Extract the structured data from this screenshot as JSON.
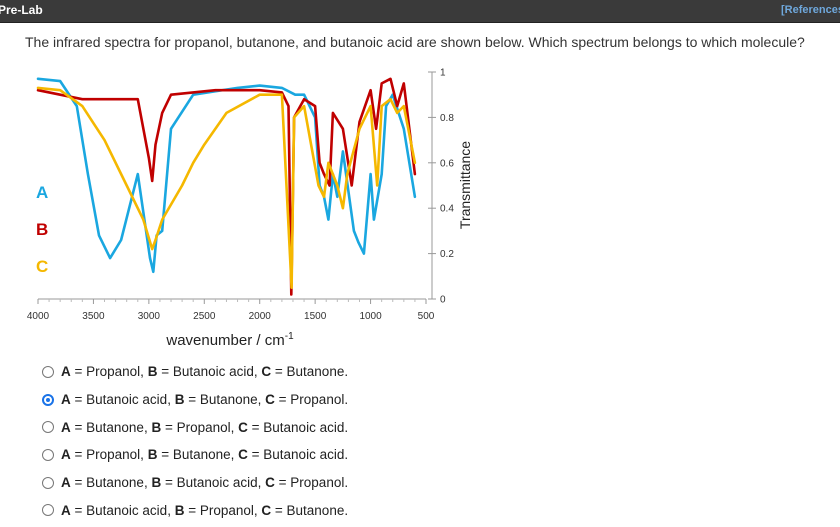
{
  "header": {
    "title": "Pre-Lab",
    "references_link": "[References"
  },
  "question": "The infrared spectra for propanol, butanone, and butanoic acid are shown below. Which spectrum belongs to which molecule?",
  "chart_data": {
    "type": "line",
    "xlabel": "wavenumber / cm",
    "xlabel_superscript": "-1",
    "ylabel": "Transmittance",
    "x_reversed": true,
    "xlim": [
      4000,
      500
    ],
    "ylim": [
      0,
      1
    ],
    "x_ticks": [
      "4000",
      "3500",
      "3000",
      "2500",
      "2000",
      "1500",
      "1000",
      "500"
    ],
    "y_ticks": [
      "0",
      "0.2",
      "0.4",
      "0.6",
      "0.8",
      "1"
    ],
    "grid": false,
    "labels": [
      {
        "text": "A",
        "color": "#1aa7e0"
      },
      {
        "text": "B",
        "color": "#c00000"
      },
      {
        "text": "C",
        "color": "#f5b800"
      }
    ],
    "series": [
      {
        "name": "A",
        "color": "#1aa7e0",
        "points": [
          [
            4000,
            0.97
          ],
          [
            3800,
            0.96
          ],
          [
            3650,
            0.85
          ],
          [
            3550,
            0.55
          ],
          [
            3450,
            0.28
          ],
          [
            3350,
            0.18
          ],
          [
            3250,
            0.26
          ],
          [
            3100,
            0.55
          ],
          [
            2990,
            0.18
          ],
          [
            2960,
            0.12
          ],
          [
            2930,
            0.28
          ],
          [
            2880,
            0.3
          ],
          [
            2800,
            0.75
          ],
          [
            2600,
            0.9
          ],
          [
            2200,
            0.93
          ],
          [
            2000,
            0.94
          ],
          [
            1800,
            0.93
          ],
          [
            1680,
            0.9
          ],
          [
            1600,
            0.9
          ],
          [
            1500,
            0.8
          ],
          [
            1460,
            0.5
          ],
          [
            1420,
            0.45
          ],
          [
            1380,
            0.35
          ],
          [
            1340,
            0.55
          ],
          [
            1300,
            0.45
          ],
          [
            1250,
            0.65
          ],
          [
            1150,
            0.3
          ],
          [
            1110,
            0.25
          ],
          [
            1060,
            0.2
          ],
          [
            1000,
            0.55
          ],
          [
            970,
            0.35
          ],
          [
            900,
            0.55
          ],
          [
            860,
            0.85
          ],
          [
            800,
            0.9
          ],
          [
            700,
            0.75
          ],
          [
            600,
            0.45
          ]
        ]
      },
      {
        "name": "B",
        "color": "#c00000",
        "points": [
          [
            4000,
            0.92
          ],
          [
            3800,
            0.9
          ],
          [
            3600,
            0.88
          ],
          [
            3400,
            0.88
          ],
          [
            3100,
            0.88
          ],
          [
            3000,
            0.62
          ],
          [
            2970,
            0.52
          ],
          [
            2940,
            0.68
          ],
          [
            2880,
            0.82
          ],
          [
            2800,
            0.9
          ],
          [
            2400,
            0.92
          ],
          [
            2000,
            0.92
          ],
          [
            1800,
            0.91
          ],
          [
            1740,
            0.85
          ],
          [
            1715,
            0.02
          ],
          [
            1690,
            0.8
          ],
          [
            1600,
            0.88
          ],
          [
            1500,
            0.85
          ],
          [
            1460,
            0.6
          ],
          [
            1420,
            0.55
          ],
          [
            1370,
            0.5
          ],
          [
            1340,
            0.82
          ],
          [
            1250,
            0.75
          ],
          [
            1170,
            0.5
          ],
          [
            1100,
            0.78
          ],
          [
            1000,
            0.92
          ],
          [
            950,
            0.75
          ],
          [
            900,
            0.95
          ],
          [
            820,
            0.97
          ],
          [
            760,
            0.85
          ],
          [
            700,
            0.95
          ],
          [
            600,
            0.55
          ]
        ]
      },
      {
        "name": "C",
        "color": "#f5b800",
        "points": [
          [
            4000,
            0.93
          ],
          [
            3800,
            0.92
          ],
          [
            3600,
            0.85
          ],
          [
            3400,
            0.7
          ],
          [
            3200,
            0.5
          ],
          [
            3050,
            0.35
          ],
          [
            2970,
            0.22
          ],
          [
            2940,
            0.26
          ],
          [
            2880,
            0.35
          ],
          [
            2700,
            0.5
          ],
          [
            2600,
            0.6
          ],
          [
            2500,
            0.68
          ],
          [
            2300,
            0.82
          ],
          [
            2000,
            0.9
          ],
          [
            1800,
            0.9
          ],
          [
            1712,
            0.05
          ],
          [
            1690,
            0.8
          ],
          [
            1600,
            0.85
          ],
          [
            1470,
            0.5
          ],
          [
            1420,
            0.45
          ],
          [
            1380,
            0.6
          ],
          [
            1300,
            0.5
          ],
          [
            1250,
            0.4
          ],
          [
            1210,
            0.55
          ],
          [
            1100,
            0.75
          ],
          [
            1000,
            0.85
          ],
          [
            940,
            0.5
          ],
          [
            900,
            0.85
          ],
          [
            820,
            0.88
          ],
          [
            760,
            0.82
          ],
          [
            700,
            0.85
          ],
          [
            600,
            0.6
          ]
        ]
      }
    ]
  },
  "options": [
    {
      "parts": [
        [
          "A",
          " = Propanol, "
        ],
        [
          "B",
          " = Butanoic acid, "
        ],
        [
          "C",
          " = Butanone."
        ]
      ],
      "selected": false
    },
    {
      "parts": [
        [
          "A",
          " = Butanoic acid, "
        ],
        [
          "B",
          " = Butanone, "
        ],
        [
          "C",
          " = Propanol."
        ]
      ],
      "selected": true
    },
    {
      "parts": [
        [
          "A",
          " = Butanone, "
        ],
        [
          "B",
          " = Propanol, "
        ],
        [
          "C",
          " = Butanoic acid."
        ]
      ],
      "selected": false
    },
    {
      "parts": [
        [
          "A",
          " = Propanol, "
        ],
        [
          "B",
          " = Butanone, "
        ],
        [
          "C",
          " = Butanoic acid."
        ]
      ],
      "selected": false
    },
    {
      "parts": [
        [
          "A",
          " = Butanone, "
        ],
        [
          "B",
          " = Butanoic acid, "
        ],
        [
          "C",
          " = Propanol."
        ]
      ],
      "selected": false
    },
    {
      "parts": [
        [
          "A",
          " = Butanoic acid, "
        ],
        [
          "B",
          " = Propanol, "
        ],
        [
          "C",
          " = Butanone."
        ]
      ],
      "selected": false
    }
  ]
}
